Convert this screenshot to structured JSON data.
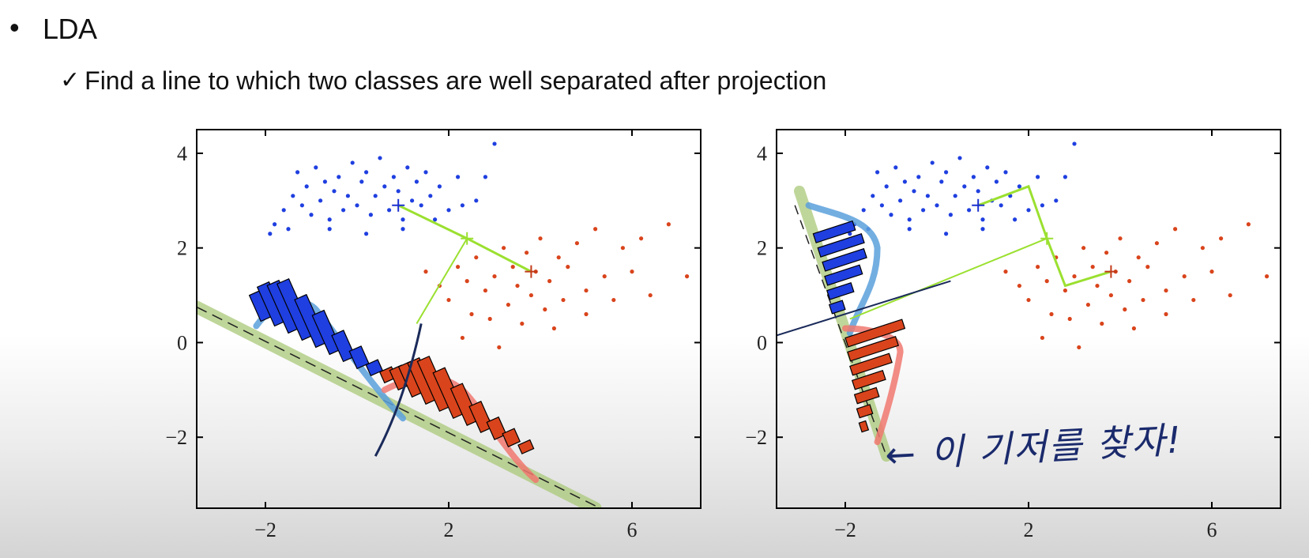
{
  "slide": {
    "bullet": "•",
    "title": "LDA",
    "check": "✓",
    "subtitle": "Find a line to which two classes are well separated after projection",
    "handwriting": "← 이 기저를 찾자!"
  },
  "colors": {
    "blue_class": "#1f3fe0",
    "red_class": "#d9441c",
    "blue_density": "#5aa0dc",
    "red_density": "#f07870",
    "projection_band": "#a9c878",
    "mean_line": "#9be030",
    "boundary": "#1a2a5a"
  },
  "chart_data": [
    {
      "type": "scatter",
      "xlim": [
        -3.5,
        7.5
      ],
      "ylim": [
        -3.5,
        4.5
      ],
      "x_ticks": [
        -2,
        2,
        6
      ],
      "y_ticks": [
        4,
        2,
        0,
        -2
      ],
      "series": [
        {
          "points": [
            [
              -1.8,
              2.5
            ],
            [
              -1.6,
              2.8
            ],
            [
              -1.4,
              3.1
            ],
            [
              -1.3,
              3.6
            ],
            [
              -1.2,
              2.9
            ],
            [
              -1.1,
              3.3
            ],
            [
              -1.0,
              2.7
            ],
            [
              -0.9,
              3.7
            ],
            [
              -0.8,
              3.0
            ],
            [
              -0.7,
              3.4
            ],
            [
              -0.6,
              2.6
            ],
            [
              -0.5,
              3.2
            ],
            [
              -0.4,
              3.5
            ],
            [
              -0.3,
              2.8
            ],
            [
              -0.2,
              3.1
            ],
            [
              -0.1,
              3.8
            ],
            [
              0.0,
              2.9
            ],
            [
              0.1,
              3.4
            ],
            [
              0.2,
              3.6
            ],
            [
              0.3,
              2.7
            ],
            [
              0.4,
              3.1
            ],
            [
              0.5,
              3.9
            ],
            [
              0.6,
              3.3
            ],
            [
              0.7,
              2.8
            ],
            [
              0.8,
              3.5
            ],
            [
              0.9,
              3.2
            ],
            [
              1.0,
              2.6
            ],
            [
              1.1,
              3.7
            ],
            [
              1.2,
              3.0
            ],
            [
              1.3,
              3.4
            ],
            [
              1.4,
              2.9
            ],
            [
              1.5,
              3.6
            ],
            [
              1.6,
              3.1
            ],
            [
              1.8,
              3.3
            ],
            [
              2.0,
              2.8
            ],
            [
              2.2,
              3.5
            ],
            [
              2.6,
              3.0
            ],
            [
              2.8,
              3.5
            ],
            [
              3.0,
              4.2
            ],
            [
              -1.9,
              2.3
            ],
            [
              -1.5,
              2.4
            ],
            [
              -0.6,
              2.4
            ],
            [
              0.2,
              2.3
            ],
            [
              1.0,
              2.4
            ],
            [
              1.7,
              2.6
            ],
            [
              2.3,
              2.9
            ]
          ]
        },
        {
          "points": [
            [
              1.5,
              1.5
            ],
            [
              1.8,
              1.2
            ],
            [
              2.0,
              0.9
            ],
            [
              2.2,
              1.6
            ],
            [
              2.4,
              1.3
            ],
            [
              2.5,
              0.6
            ],
            [
              2.6,
              1.8
            ],
            [
              2.8,
              1.1
            ],
            [
              2.9,
              0.5
            ],
            [
              3.0,
              1.4
            ],
            [
              3.2,
              2.0
            ],
            [
              3.3,
              0.8
            ],
            [
              3.4,
              1.6
            ],
            [
              3.5,
              1.2
            ],
            [
              3.6,
              0.4
            ],
            [
              3.7,
              1.9
            ],
            [
              3.8,
              1.0
            ],
            [
              3.9,
              1.5
            ],
            [
              4.0,
              2.2
            ],
            [
              4.1,
              0.7
            ],
            [
              4.2,
              1.3
            ],
            [
              4.4,
              1.8
            ],
            [
              4.5,
              0.9
            ],
            [
              4.6,
              1.6
            ],
            [
              4.8,
              2.1
            ],
            [
              5.0,
              1.1
            ],
            [
              5.2,
              2.4
            ],
            [
              5.4,
              1.4
            ],
            [
              5.6,
              0.9
            ],
            [
              5.8,
              2.0
            ],
            [
              6.0,
              1.5
            ],
            [
              6.2,
              2.2
            ],
            [
              6.4,
              1.0
            ],
            [
              6.8,
              2.5
            ],
            [
              7.2,
              1.4
            ],
            [
              2.3,
              0.1
            ],
            [
              3.1,
              -0.1
            ],
            [
              4.3,
              0.3
            ],
            [
              5.0,
              0.6
            ]
          ]
        }
      ],
      "means": {
        "blue": [
          0.9,
          2.9
        ],
        "red": [
          3.8,
          1.5
        ],
        "midpoint": [
          2.4,
          2.2
        ]
      }
    },
    {
      "type": "scatter",
      "xlim": [
        -3.5,
        7.5
      ],
      "ylim": [
        -3.5,
        4.5
      ],
      "x_ticks": [
        -2,
        2,
        6
      ],
      "y_ticks": [
        4,
        2,
        0,
        -2
      ],
      "series": [
        {
          "points": [
            [
              -1.8,
              2.5
            ],
            [
              -1.6,
              2.8
            ],
            [
              -1.4,
              3.1
            ],
            [
              -1.3,
              3.6
            ],
            [
              -1.2,
              2.9
            ],
            [
              -1.1,
              3.3
            ],
            [
              -1.0,
              2.7
            ],
            [
              -0.9,
              3.7
            ],
            [
              -0.8,
              3.0
            ],
            [
              -0.7,
              3.4
            ],
            [
              -0.6,
              2.6
            ],
            [
              -0.5,
              3.2
            ],
            [
              -0.4,
              3.5
            ],
            [
              -0.3,
              2.8
            ],
            [
              -0.2,
              3.1
            ],
            [
              -0.1,
              3.8
            ],
            [
              0.0,
              2.9
            ],
            [
              0.1,
              3.4
            ],
            [
              0.2,
              3.6
            ],
            [
              0.3,
              2.7
            ],
            [
              0.4,
              3.1
            ],
            [
              0.5,
              3.9
            ],
            [
              0.6,
              3.3
            ],
            [
              0.7,
              2.8
            ],
            [
              0.8,
              3.5
            ],
            [
              0.9,
              3.2
            ],
            [
              1.0,
              2.6
            ],
            [
              1.1,
              3.7
            ],
            [
              1.2,
              3.0
            ],
            [
              1.3,
              3.4
            ],
            [
              1.4,
              2.9
            ],
            [
              1.5,
              3.6
            ],
            [
              1.6,
              3.1
            ],
            [
              1.8,
              3.3
            ],
            [
              2.0,
              2.8
            ],
            [
              2.2,
              3.5
            ],
            [
              2.6,
              3.0
            ],
            [
              2.8,
              3.5
            ],
            [
              3.0,
              4.2
            ],
            [
              -1.9,
              2.3
            ],
            [
              -1.5,
              2.4
            ],
            [
              -0.6,
              2.4
            ],
            [
              0.2,
              2.3
            ],
            [
              1.0,
              2.4
            ],
            [
              1.7,
              2.6
            ],
            [
              2.3,
              2.9
            ]
          ]
        },
        {
          "points": [
            [
              1.5,
              1.5
            ],
            [
              1.8,
              1.2
            ],
            [
              2.0,
              0.9
            ],
            [
              2.2,
              1.6
            ],
            [
              2.4,
              1.3
            ],
            [
              2.5,
              0.6
            ],
            [
              2.6,
              1.8
            ],
            [
              2.8,
              1.1
            ],
            [
              2.9,
              0.5
            ],
            [
              3.0,
              1.4
            ],
            [
              3.2,
              2.0
            ],
            [
              3.3,
              0.8
            ],
            [
              3.4,
              1.6
            ],
            [
              3.5,
              1.2
            ],
            [
              3.6,
              0.4
            ],
            [
              3.7,
              1.9
            ],
            [
              3.8,
              1.0
            ],
            [
              3.9,
              1.5
            ],
            [
              4.0,
              2.2
            ],
            [
              4.1,
              0.7
            ],
            [
              4.2,
              1.3
            ],
            [
              4.4,
              1.8
            ],
            [
              4.5,
              0.9
            ],
            [
              4.6,
              1.6
            ],
            [
              4.8,
              2.1
            ],
            [
              5.0,
              1.1
            ],
            [
              5.2,
              2.4
            ],
            [
              5.4,
              1.4
            ],
            [
              5.6,
              0.9
            ],
            [
              5.8,
              2.0
            ],
            [
              6.0,
              1.5
            ],
            [
              6.2,
              2.2
            ],
            [
              6.4,
              1.0
            ],
            [
              6.8,
              2.5
            ],
            [
              7.2,
              1.4
            ],
            [
              2.3,
              0.1
            ],
            [
              3.1,
              -0.1
            ],
            [
              4.3,
              0.3
            ],
            [
              5.0,
              0.6
            ]
          ]
        }
      ],
      "means": {
        "blue": [
          0.9,
          2.9
        ],
        "red": [
          3.8,
          1.5
        ],
        "midpoint": [
          2.4,
          2.2
        ]
      }
    }
  ]
}
